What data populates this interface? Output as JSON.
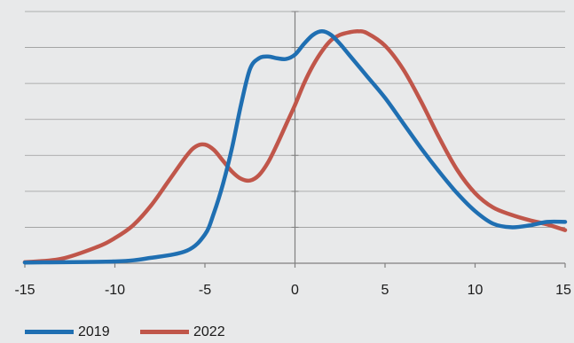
{
  "chart_data": {
    "type": "line",
    "title": "",
    "xlabel": "",
    "ylabel": "",
    "xlim": [
      -15,
      15
    ],
    "ylim": [
      0,
      7
    ],
    "x_ticks": [
      -15,
      -10,
      -5,
      0,
      5,
      10,
      15
    ],
    "x_tick_labels": [
      "-15",
      "-10",
      "-5",
      "0",
      "5",
      "10",
      "15"
    ],
    "y_gridlines": [
      1,
      2,
      3,
      4,
      5,
      6,
      7
    ],
    "grid": true,
    "legend_position": "bottom-left",
    "background_color": "#e8e9ea",
    "series": [
      {
        "name": "2019",
        "color": "#1f6fb2",
        "x": [
          -15,
          -10,
          -8,
          -6,
          -5,
          -4.5,
          -4,
          -3.5,
          -3,
          -2.5,
          -2,
          -1.5,
          -1,
          -0.5,
          0,
          0.5,
          1,
          1.5,
          2,
          2.5,
          3,
          4,
          5,
          6,
          7,
          8,
          9,
          10,
          11,
          12,
          13,
          14,
          15
        ],
        "y": [
          0.02,
          0.05,
          0.15,
          0.35,
          0.8,
          1.4,
          2.2,
          3.2,
          4.4,
          5.4,
          5.7,
          5.75,
          5.7,
          5.68,
          5.8,
          6.1,
          6.35,
          6.45,
          6.35,
          6.1,
          5.8,
          5.2,
          4.6,
          3.9,
          3.2,
          2.55,
          1.95,
          1.45,
          1.1,
          1.0,
          1.05,
          1.15,
          1.15
        ]
      },
      {
        "name": "2022",
        "color": "#c0564a",
        "x": [
          -15,
          -13,
          -11,
          -10,
          -9,
          -8,
          -7,
          -6,
          -5.5,
          -5,
          -4.5,
          -4,
          -3.5,
          -3,
          -2.5,
          -2,
          -1.5,
          -1,
          -0.5,
          0,
          0.5,
          1,
          1.5,
          2,
          2.5,
          3,
          3.5,
          4,
          5,
          6,
          7,
          8,
          9,
          10,
          11,
          12,
          13,
          14,
          15
        ],
        "y": [
          0.03,
          0.12,
          0.45,
          0.7,
          1.05,
          1.6,
          2.3,
          3.0,
          3.25,
          3.3,
          3.15,
          2.85,
          2.55,
          2.35,
          2.3,
          2.45,
          2.8,
          3.3,
          3.85,
          4.4,
          5.0,
          5.5,
          5.9,
          6.2,
          6.35,
          6.42,
          6.45,
          6.4,
          6.05,
          5.4,
          4.5,
          3.5,
          2.6,
          1.95,
          1.55,
          1.35,
          1.2,
          1.08,
          0.92
        ]
      }
    ]
  }
}
